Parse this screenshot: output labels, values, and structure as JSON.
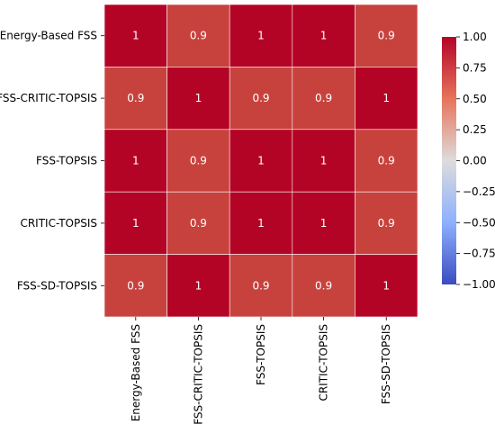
{
  "chart_data": {
    "type": "heatmap",
    "title": "",
    "xlabel": "",
    "ylabel": "",
    "row_labels": [
      "Energy-Based FSS",
      "FSS-CRITIC-TOPSIS",
      "FSS-TOPSIS",
      "CRITIC-TOPSIS",
      "FSS-SD-TOPSIS"
    ],
    "col_labels": [
      "Energy-Based FSS",
      "FSS-CRITIC-TOPSIS",
      "FSS-TOPSIS",
      "CRITIC-TOPSIS",
      "FSS-SD-TOPSIS"
    ],
    "values": [
      [
        1,
        0.9,
        1,
        1,
        0.9
      ],
      [
        0.9,
        1,
        0.9,
        0.9,
        1
      ],
      [
        1,
        0.9,
        1,
        1,
        0.9
      ],
      [
        1,
        0.9,
        1,
        1,
        0.9
      ],
      [
        0.9,
        1,
        0.9,
        0.9,
        1
      ]
    ],
    "cell_labels": [
      [
        "1",
        "0.9",
        "1",
        "1",
        "0.9"
      ],
      [
        "0.9",
        "1",
        "0.9",
        "0.9",
        "1"
      ],
      [
        "1",
        "0.9",
        "1",
        "1",
        "0.9"
      ],
      [
        "1",
        "0.9",
        "1",
        "1",
        "0.9"
      ],
      [
        "0.9",
        "1",
        "0.9",
        "0.9",
        "1"
      ]
    ],
    "colormap": "coolwarm",
    "vmin": -1,
    "vmax": 1,
    "colorbar_ticks": [
      1.0,
      0.75,
      0.5,
      0.25,
      0.0,
      -0.25,
      -0.5,
      -0.75,
      -1.0
    ],
    "colorbar_tick_labels": [
      "1.00",
      "0.75",
      "0.50",
      "0.25",
      "0.00",
      "−0.25",
      "−0.50",
      "−0.75",
      "−1.00"
    ],
    "colorbar_colors": [
      "#b40426",
      "#e7745b",
      "#dddcdc",
      "#8db0fe",
      "#3b4cc0"
    ],
    "cell_colors": {
      "1": "#b40426",
      "0.9": "#c8423d"
    },
    "annotation_color": "#ffffff",
    "grid_line_color": "#ffffff"
  }
}
